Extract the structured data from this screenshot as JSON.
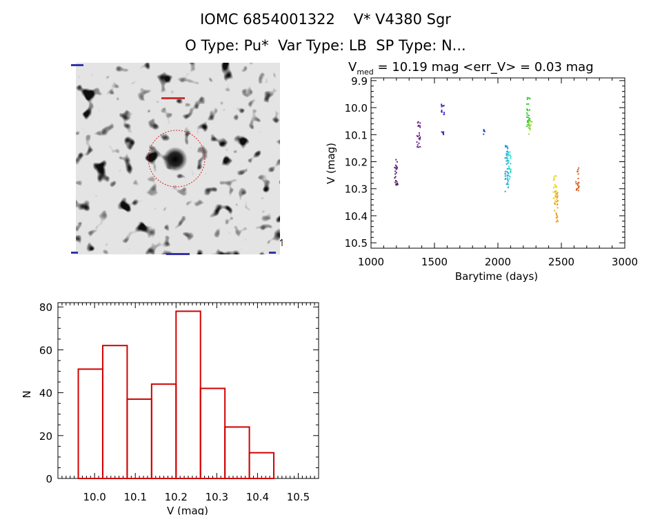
{
  "header": {
    "title": "IOMC 6854001322    V* V4380 Sgr",
    "subtitle": "O Type: Pu*  Var Type: LB  SP Type: N..."
  },
  "lightcurve": {
    "stat_prefix": "V",
    "stat_sub": "med",
    "stat_text": " = 10.19 mag <err_V> = 0.03 mag",
    "xlabel": "Barytime (days)",
    "ylabel": "V (mag)"
  },
  "chart_data": [
    {
      "type": "scatter",
      "title": "",
      "xlabel": "Barytime (days)",
      "ylabel": "V (mag)",
      "xlim": [
        1000,
        3000
      ],
      "ylim": [
        10.52,
        9.89
      ],
      "y_inverted": true,
      "xticks": [
        1000,
        1500,
        2000,
        2500,
        3000
      ],
      "yticks": [
        9.9,
        10.0,
        10.1,
        10.2,
        10.3,
        10.4,
        10.5
      ],
      "clusters": [
        {
          "x": 1200,
          "y_min": 10.19,
          "y_max": 10.29,
          "color": "#5a1f6e"
        },
        {
          "x": 1375,
          "y_min": 10.05,
          "y_max": 10.15,
          "color": "#6a1f8a"
        },
        {
          "x": 1565,
          "y_min": 9.98,
          "y_max": 10.03,
          "color": "#3b2bbf"
        },
        {
          "x": 1565,
          "y_min": 10.08,
          "y_max": 10.1,
          "color": "#3b2bbf"
        },
        {
          "x": 1900,
          "y_min": 10.08,
          "y_max": 10.1,
          "color": "#1f4fd8"
        },
        {
          "x": 2070,
          "y_min": 10.14,
          "y_max": 10.31,
          "color": "#1fa0d8"
        },
        {
          "x": 2090,
          "y_min": 10.16,
          "y_max": 10.29,
          "color": "#30d8c8"
        },
        {
          "x": 2240,
          "y_min": 9.96,
          "y_max": 10.08,
          "color": "#2ec82e"
        },
        {
          "x": 2255,
          "y_min": 10.04,
          "y_max": 10.1,
          "color": "#9ed82e"
        },
        {
          "x": 2450,
          "y_min": 10.25,
          "y_max": 10.35,
          "color": "#e8d81f"
        },
        {
          "x": 2460,
          "y_min": 10.31,
          "y_max": 10.43,
          "color": "#e8a01f"
        },
        {
          "x": 2625,
          "y_min": 10.22,
          "y_max": 10.31,
          "color": "#d8601f"
        }
      ]
    },
    {
      "type": "bar",
      "title": "",
      "xlabel": "V (mag)",
      "ylabel": "N",
      "xlim": [
        9.91,
        10.55
      ],
      "ylim": [
        0,
        82
      ],
      "xticks": [
        10.0,
        10.1,
        10.2,
        10.3,
        10.4,
        10.5
      ],
      "xtick_labels": [
        "10.0",
        "10.1",
        "10.2",
        "10.3",
        "10.4",
        "10.5"
      ],
      "yticks": [
        0,
        20,
        40,
        60,
        80
      ],
      "bin_edges": [
        9.96,
        10.02,
        10.08,
        10.14,
        10.2,
        10.26,
        10.32,
        10.38,
        10.44
      ],
      "values": [
        51,
        62,
        37,
        44,
        78,
        42,
        24,
        12
      ],
      "color": "#d00000"
    }
  ]
}
